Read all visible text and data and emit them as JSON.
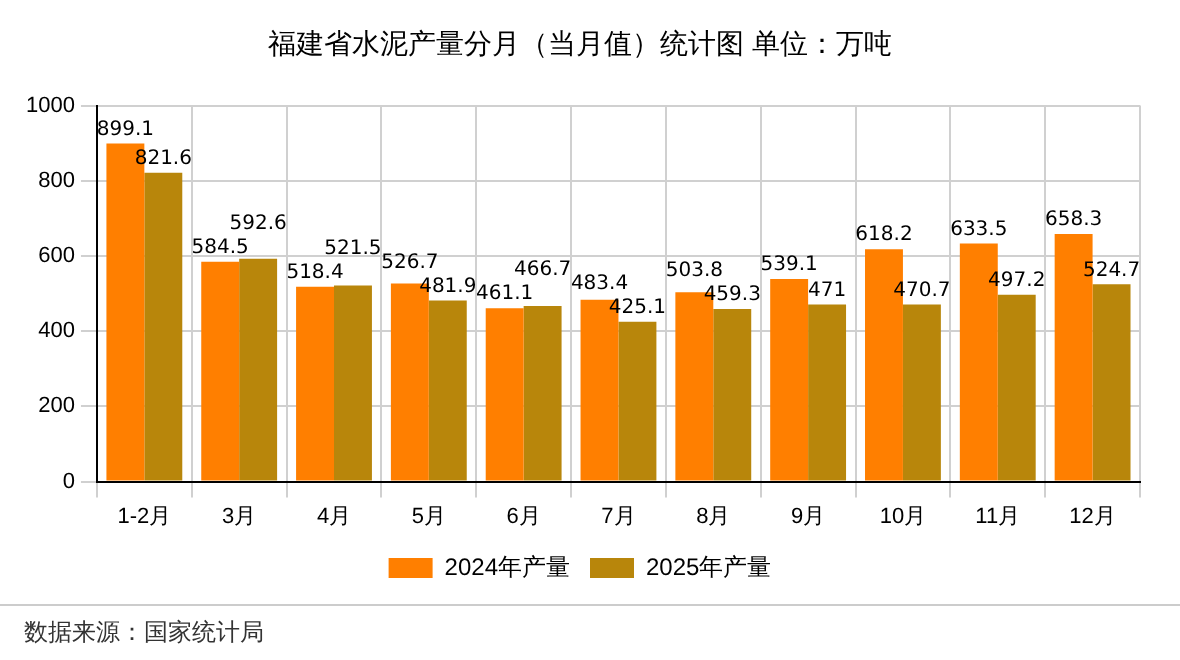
{
  "chart_data": {
    "type": "bar",
    "title": "福建省水泥产量分月（当月值）统计图 单位：万吨",
    "categories": [
      "1-2月",
      "3月",
      "4月",
      "5月",
      "6月",
      "7月",
      "8月",
      "9月",
      "10月",
      "11月",
      "12月"
    ],
    "series": [
      {
        "name": "2024年产量",
        "color": "#ff7f00",
        "values": [
          899.1,
          584.5,
          518.4,
          526.7,
          461.1,
          483.4,
          503.8,
          539.1,
          618.2,
          633.5,
          658.3
        ]
      },
      {
        "name": "2025年产量",
        "color": "#b8860b",
        "values": [
          821.6,
          592.6,
          521.5,
          481.9,
          466.7,
          425.1,
          459.3,
          471,
          470.7,
          497.2,
          524.7
        ]
      }
    ],
    "ylim": [
      0,
      1000
    ],
    "yticks": [
      0,
      200,
      400,
      600,
      800,
      1000
    ],
    "grid": true,
    "legend": "bottom",
    "data_labels": true,
    "annotations": [
      "数据来源：国家统计局"
    ]
  }
}
